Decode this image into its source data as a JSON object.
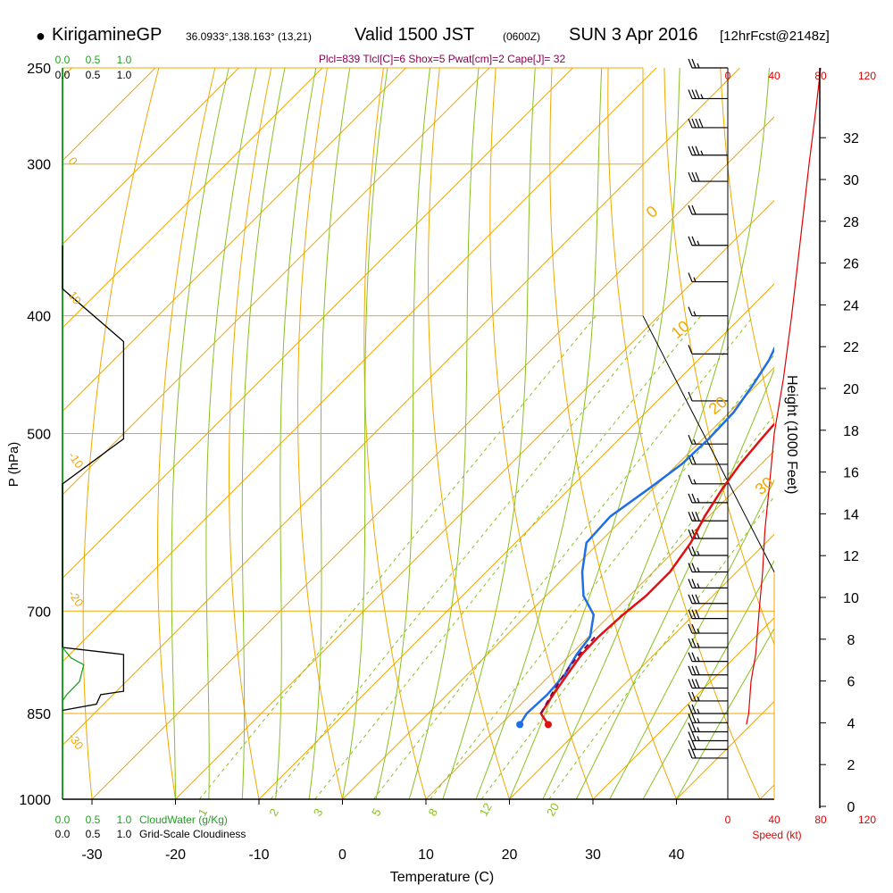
{
  "header": {
    "site": "KirigamineGP",
    "coords": "36.0933°,138.163° (13,21)",
    "valid_prefix": "Valid 1500 JST",
    "valid_z": "(0600Z)",
    "valid_date": "SUN 3 Apr 2016",
    "forecast": "[12hrFcst@2148z]"
  },
  "indices": "Plcl=839 Tlcl[C]=6 Shox=5 Pwat[cm]=2 Cape[J]= 32",
  "colors": {
    "isotherm": "#f0a800",
    "dry_adiabat": "#f0a800",
    "moist_adiabat": "#88c020",
    "mixing_ratio": "#88c020",
    "temperature": "#e01010",
    "dewpoint": "#1e6ee8",
    "parcel": "#800050",
    "cloudwater": "#20a020",
    "speed": "#e00000"
  },
  "chart_data": {
    "type": "line",
    "title": "",
    "xlabel": "Temperature (C)",
    "ylabel": "P (hPa)",
    "y2label": "Height (1000 Feet)",
    "x_ticks": [
      "-30",
      "-20",
      "-10",
      "0",
      "10",
      "20",
      "30",
      "40"
    ],
    "p_ticks": [
      "250",
      "300",
      "400",
      "500",
      "700",
      "850",
      "1000"
    ],
    "height_ticks": [
      "0",
      "2",
      "4",
      "6",
      "8",
      "10",
      "12",
      "14",
      "16",
      "18",
      "20",
      "22",
      "24",
      "26",
      "28",
      "30",
      "32"
    ],
    "speed_ticks": [
      "0",
      "40",
      "80",
      "120"
    ],
    "speed_label": "Speed (kt)",
    "cloudwater_ticks": [
      "0.0",
      "0.5",
      "1.0"
    ],
    "cloudwater_label": "CloudWater (g/Kg)",
    "cloudiness_ticks": [
      "0.0",
      "0.5",
      "1.0"
    ],
    "cloudiness_label": "Grid-Scale Cloudiness",
    "mixing_ratio_labels": [
      "1",
      "2",
      "3",
      "5",
      "8",
      "12",
      "20"
    ],
    "dry_adiabat_labels": [
      "0",
      "10",
      "20",
      "30"
    ],
    "moist_adiabat_labels": [
      "10",
      "0",
      "-10",
      "-20",
      "-30"
    ],
    "series": [
      {
        "name": "Temperature",
        "color": "#e01010",
        "points": [
          [
            15.7,
            868
          ],
          [
            13.5,
            850
          ],
          [
            12.7,
            820
          ],
          [
            12.0,
            790
          ],
          [
            11.3,
            760
          ],
          [
            11.2,
            735
          ],
          [
            11.5,
            705
          ],
          [
            12.0,
            680
          ],
          [
            12.0,
            650
          ],
          [
            11.0,
            615
          ],
          [
            9.5,
            585
          ],
          [
            8.3,
            555
          ],
          [
            7.5,
            530
          ],
          [
            7.0,
            505
          ],
          [
            6.6,
            480
          ],
          [
            5.7,
            455
          ],
          [
            4.5,
            435
          ],
          [
            2.8,
            410
          ],
          [
            0.5,
            385
          ],
          [
            -2.0,
            355
          ],
          [
            -5.5,
            320
          ],
          [
            -9.0,
            290
          ],
          [
            -11.5,
            270
          ],
          [
            -13.0,
            258
          ]
        ]
      },
      {
        "name": "Dewpoint",
        "color": "#1e6ee8",
        "points": [
          [
            12.3,
            868
          ],
          [
            11.8,
            850
          ],
          [
            12.0,
            820
          ],
          [
            11.7,
            790
          ],
          [
            10.7,
            760
          ],
          [
            10.2,
            735
          ],
          [
            8.0,
            705
          ],
          [
            4.5,
            680
          ],
          [
            1.5,
            650
          ],
          [
            -1.5,
            615
          ],
          [
            -1.8,
            585
          ],
          [
            -0.5,
            555
          ],
          [
            0.5,
            530
          ],
          [
            0.7,
            505
          ],
          [
            0.5,
            480
          ],
          [
            -0.5,
            455
          ],
          [
            -1.5,
            435
          ],
          [
            -3.5,
            410
          ],
          [
            -6.0,
            385
          ],
          [
            -9.0,
            355
          ],
          [
            -12.5,
            320
          ],
          [
            -16.0,
            290
          ],
          [
            -18.0,
            270
          ],
          [
            -19.0,
            258
          ]
        ]
      },
      {
        "name": "Parcel",
        "color": "#800050",
        "points": [
          [
            13.5,
            850
          ],
          [
            12.5,
            820
          ],
          [
            11.6,
            790
          ],
          [
            11.0,
            760
          ],
          [
            10.8,
            735
          ]
        ]
      }
    ],
    "cloudiness": [
      [
        0.0,
        350
      ],
      [
        0.0,
        380
      ],
      [
        0.72,
        420
      ],
      [
        0.72,
        505
      ],
      [
        0.0,
        550
      ],
      [
        0.0,
        750
      ],
      [
        0.72,
        760
      ],
      [
        0.72,
        815
      ],
      [
        0.45,
        820
      ],
      [
        0.4,
        835
      ],
      [
        0.0,
        845
      ]
    ],
    "cloudwater": [
      [
        0.0,
        750
      ],
      [
        0.1,
        765
      ],
      [
        0.25,
        775
      ],
      [
        0.2,
        800
      ],
      [
        0.05,
        820
      ],
      [
        0.0,
        830
      ]
    ],
    "speed_profile": [
      [
        16,
        868
      ],
      [
        18,
        850
      ],
      [
        20,
        800
      ],
      [
        24,
        760
      ],
      [
        27,
        700
      ],
      [
        30,
        650
      ],
      [
        32,
        600
      ],
      [
        36,
        550
      ],
      [
        40,
        500
      ],
      [
        48,
        450
      ],
      [
        55,
        400
      ],
      [
        62,
        350
      ],
      [
        70,
        300
      ],
      [
        76,
        270
      ],
      [
        80,
        250
      ]
    ],
    "barbs": [
      {
        "p": 250,
        "speed": 25
      },
      {
        "p": 265,
        "speed": 35
      },
      {
        "p": 280,
        "speed": 40
      },
      {
        "p": 295,
        "speed": 35
      },
      {
        "p": 310,
        "speed": 30
      },
      {
        "p": 330,
        "speed": 20
      },
      {
        "p": 350,
        "speed": 25
      },
      {
        "p": 375,
        "speed": 15
      },
      {
        "p": 400,
        "speed": 15
      },
      {
        "p": 430,
        "speed": 10
      },
      {
        "p": 470,
        "speed": 10
      },
      {
        "p": 510,
        "speed": 15
      },
      {
        "p": 530,
        "speed": 20
      },
      {
        "p": 550,
        "speed": 15
      },
      {
        "p": 570,
        "speed": 25
      },
      {
        "p": 590,
        "speed": 30
      },
      {
        "p": 610,
        "speed": 30
      },
      {
        "p": 630,
        "speed": 25
      },
      {
        "p": 650,
        "speed": 25
      },
      {
        "p": 670,
        "speed": 25
      },
      {
        "p": 690,
        "speed": 30
      },
      {
        "p": 710,
        "speed": 30
      },
      {
        "p": 730,
        "speed": 25
      },
      {
        "p": 750,
        "speed": 25
      },
      {
        "p": 770,
        "speed": 25
      },
      {
        "p": 790,
        "speed": 30
      },
      {
        "p": 810,
        "speed": 30
      },
      {
        "p": 830,
        "speed": 25
      },
      {
        "p": 850,
        "speed": 25
      },
      {
        "p": 865,
        "speed": 25
      },
      {
        "p": 880,
        "speed": 25
      },
      {
        "p": 895,
        "speed": 25
      },
      {
        "p": 910,
        "speed": 20
      },
      {
        "p": 925,
        "speed": 20
      }
    ]
  }
}
